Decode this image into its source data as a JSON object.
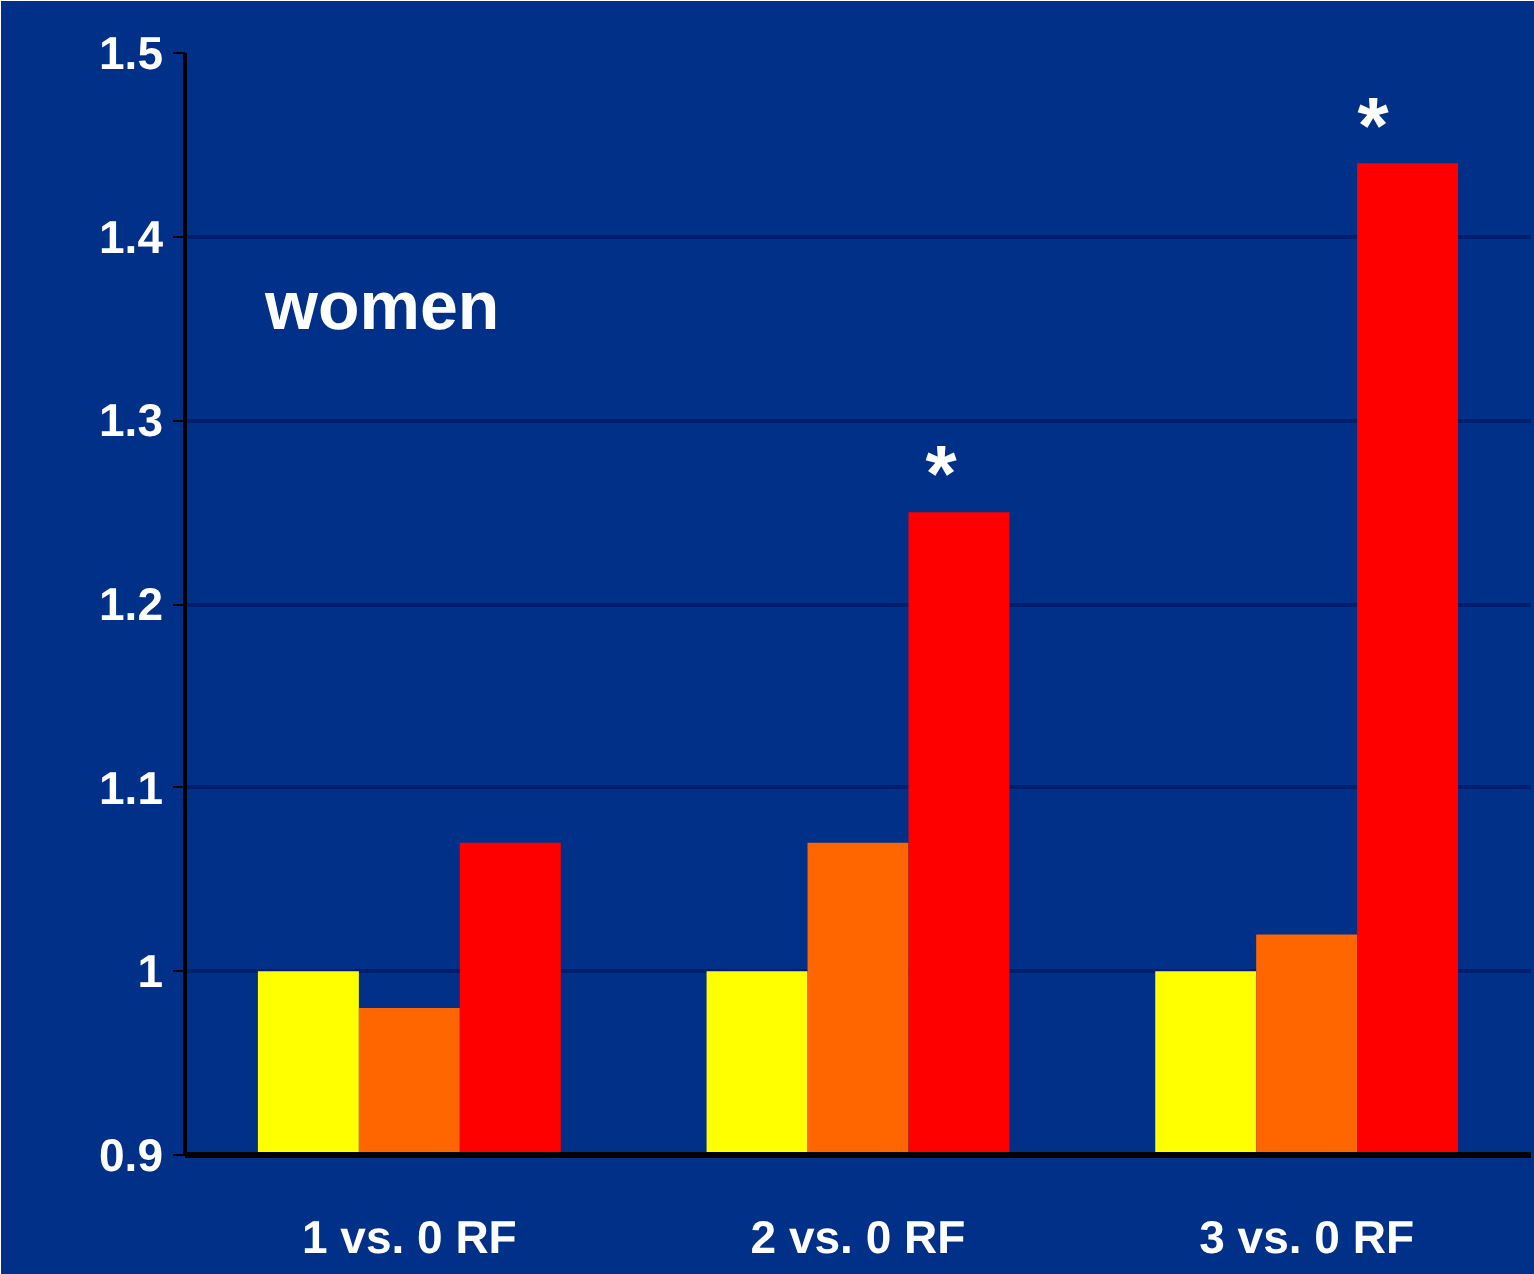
{
  "chart_data": {
    "type": "bar",
    "categories": [
      "1 vs. 0 RF",
      "2 vs. 0 RF",
      "3 vs. 0 RF"
    ],
    "series": [
      {
        "color": "#ffff00",
        "values": [
          1.0,
          1.0,
          1.0
        ]
      },
      {
        "color": "#ff6600",
        "values": [
          0.98,
          1.07,
          1.02
        ]
      },
      {
        "color": "#ff0000",
        "values": [
          1.07,
          1.25,
          1.44
        ]
      }
    ],
    "ylim": [
      0.9,
      1.5
    ],
    "yticks": [
      0.9,
      1,
      1.1,
      1.2,
      1.3,
      1.4,
      1.5
    ],
    "grid": "y",
    "annotations": [
      "women",
      "*",
      "*"
    ]
  }
}
